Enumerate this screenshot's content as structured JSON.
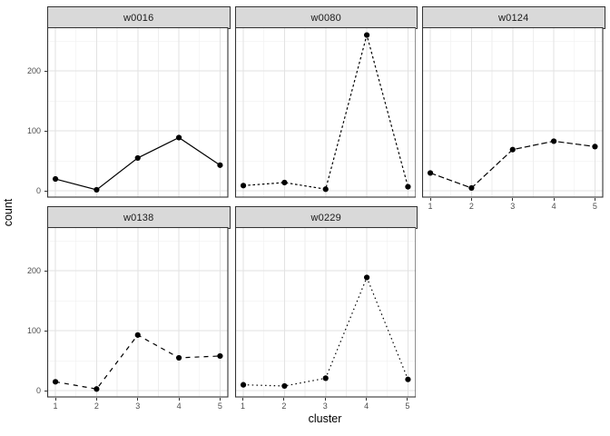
{
  "chart_data": {
    "type": "line",
    "title": "",
    "xlabel": "cluster",
    "ylabel": "count",
    "x": [
      1,
      2,
      3,
      4,
      5
    ],
    "x_ticks": [
      "1",
      "2",
      "3",
      "4",
      "5"
    ],
    "x_minor": [
      1.5,
      2.5,
      3.5,
      4.5
    ],
    "xlim": [
      0.8,
      5.2
    ],
    "y_major": [
      0,
      100,
      200
    ],
    "y_ticks": [
      "0",
      "100",
      "200"
    ],
    "y_minor": [
      50,
      150,
      250
    ],
    "ylim": [
      -11,
      273
    ],
    "grid": "major-and-minor",
    "legend": "none",
    "facet_layout": {
      "rows": 2,
      "cols": 3
    },
    "facets": [
      {
        "label": "w0016",
        "row": 0,
        "col": 0,
        "linetype": "solid",
        "values": [
          20,
          2,
          55,
          89,
          43
        ],
        "axis_x": false,
        "axis_y": true
      },
      {
        "label": "w0080",
        "row": 0,
        "col": 1,
        "linetype": "dashed-short",
        "values": [
          9,
          14,
          3,
          260,
          7
        ],
        "axis_x": false,
        "axis_y": false
      },
      {
        "label": "w0124",
        "row": 0,
        "col": 2,
        "linetype": "dashed",
        "values": [
          30,
          5,
          69,
          83,
          74
        ],
        "axis_x": true,
        "axis_y": false
      },
      {
        "label": "w0138",
        "row": 1,
        "col": 0,
        "linetype": "dashed-spaced",
        "values": [
          15,
          3,
          93,
          55,
          58
        ],
        "axis_x": true,
        "axis_y": true
      },
      {
        "label": "w0229",
        "row": 1,
        "col": 1,
        "linetype": "dotted",
        "values": [
          10,
          8,
          21,
          189,
          19
        ],
        "axis_x": true,
        "axis_y": false
      }
    ],
    "colors": {
      "strip_fill": "#d9d9d9",
      "strip_text": "#1a1a1a",
      "panel_bg": "#ffffff",
      "panel_border": "#333333",
      "grid_major": "#e2e2e2",
      "grid_minor": "#eeeeee",
      "line": "#000000",
      "point": "#000000",
      "tick_mark": "#333333",
      "tick_text": "#4d4d4d",
      "axis_title": "#000000"
    }
  }
}
